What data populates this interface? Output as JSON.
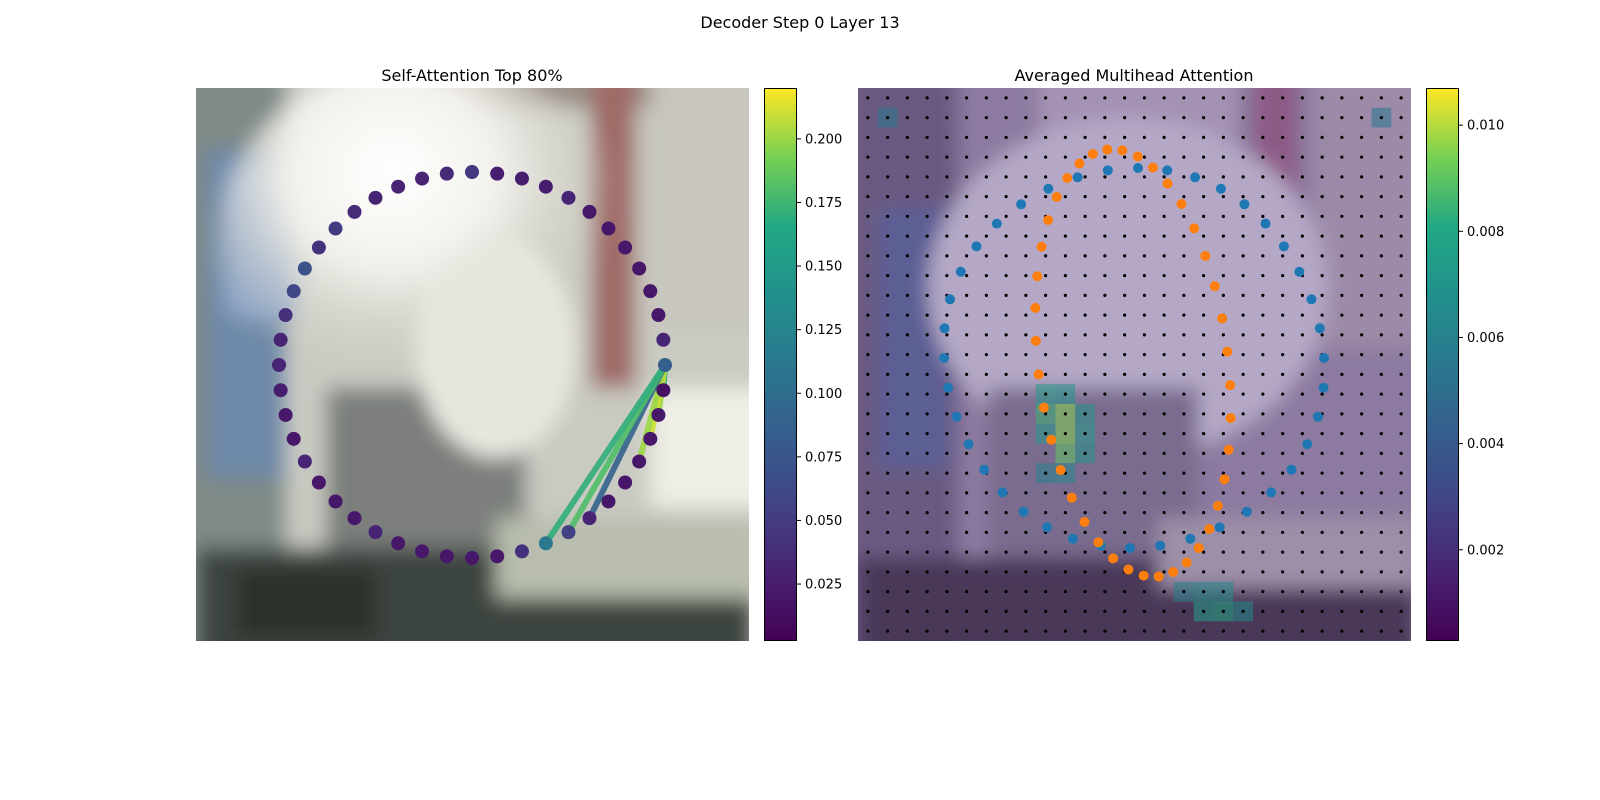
{
  "figure": {
    "title": "Decoder Step 0 Layer 13"
  },
  "chart_data": [
    {
      "type": "scatter",
      "title": "Self-Attention Top 80%",
      "description_of_marks": "48 contour points on a ring; color = attention weight from the highlighted query point; lines drawn to top-weighted keys",
      "query_index": 12,
      "point_values": [
        0.045,
        0.025,
        0.025,
        0.025,
        0.03,
        0.02,
        0.02,
        0.02,
        0.02,
        0.02,
        0.02,
        0.03,
        0.085,
        0.015,
        0.02,
        0.02,
        0.02,
        0.02,
        0.02,
        0.03,
        0.055,
        0.11,
        0.04,
        0.02,
        0.02,
        0.02,
        0.02,
        0.02,
        0.03,
        0.02,
        0.02,
        0.02,
        0.03,
        0.02,
        0.02,
        0.025,
        0.03,
        0.03,
        0.04,
        0.06,
        0.07,
        0.04,
        0.05,
        0.035,
        0.03,
        0.03,
        0.03,
        0.035
      ],
      "attention_lines": [
        {
          "to": 13,
          "value": 0.16
        },
        {
          "to": 14,
          "value": 0.2
        },
        {
          "to": 15,
          "value": 0.21
        },
        {
          "to": 16,
          "value": 0.2
        },
        {
          "to": 19,
          "value": 0.09
        },
        {
          "to": 20,
          "value": 0.18
        },
        {
          "to": 21,
          "value": 0.17
        }
      ],
      "colorbar": {
        "min": 0.003,
        "max": 0.22,
        "ticks": [
          "0.025",
          "0.050",
          "0.075",
          "0.100",
          "0.125",
          "0.150",
          "0.175",
          "0.200"
        ],
        "tick_values": [
          0.025,
          0.05,
          0.075,
          0.1,
          0.125,
          0.15,
          0.175,
          0.2
        ],
        "colormap": "viridis"
      }
    },
    {
      "type": "heatmap",
      "title": "Averaged Multihead Attention",
      "grid_size": 28,
      "series": [
        {
          "color": "#1f77b4"
        },
        {
          "color": "#ff7f0e"
        }
      ],
      "hot_cells": [
        {
          "row": 1,
          "col": 1,
          "value": 0.0055
        },
        {
          "row": 1,
          "col": 26,
          "value": 0.0055
        },
        {
          "row": 15,
          "col": 9,
          "value": 0.0075
        },
        {
          "row": 15,
          "col": 10,
          "value": 0.007
        },
        {
          "row": 16,
          "col": 9,
          "value": 0.0085
        },
        {
          "row": 16,
          "col": 10,
          "value": 0.0095
        },
        {
          "row": 16,
          "col": 11,
          "value": 0.007
        },
        {
          "row": 17,
          "col": 9,
          "value": 0.0075
        },
        {
          "row": 17,
          "col": 10,
          "value": 0.0095
        },
        {
          "row": 17,
          "col": 11,
          "value": 0.0075
        },
        {
          "row": 18,
          "col": 10,
          "value": 0.009
        },
        {
          "row": 18,
          "col": 11,
          "value": 0.007
        },
        {
          "row": 19,
          "col": 9,
          "value": 0.006
        },
        {
          "row": 19,
          "col": 10,
          "value": 0.0065
        },
        {
          "row": 25,
          "col": 16,
          "value": 0.006
        },
        {
          "row": 25,
          "col": 17,
          "value": 0.0065
        },
        {
          "row": 25,
          "col": 18,
          "value": 0.0065
        },
        {
          "row": 26,
          "col": 17,
          "value": 0.0075
        },
        {
          "row": 26,
          "col": 18,
          "value": 0.008
        },
        {
          "row": 26,
          "col": 19,
          "value": 0.0065
        }
      ],
      "colorbar": {
        "min": 0.0003,
        "max": 0.0107,
        "ticks": [
          "0.002",
          "0.004",
          "0.006",
          "0.008",
          "0.010"
        ],
        "tick_values": [
          0.002,
          0.004,
          0.006,
          0.008,
          0.01
        ],
        "colormap": "viridis"
      }
    }
  ]
}
